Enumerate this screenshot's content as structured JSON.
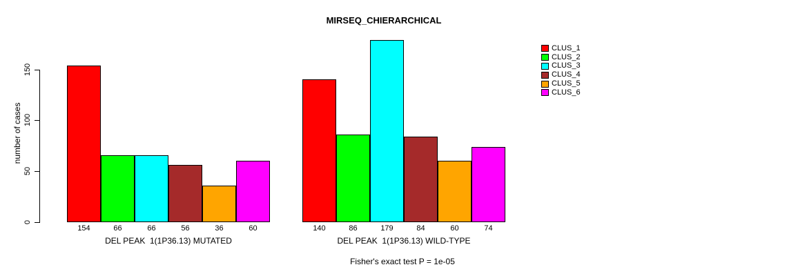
{
  "title": "MIRSEQ_CHIERARCHICAL",
  "footer": "Fisher's exact test P = 1e-05",
  "chart_data": {
    "type": "bar",
    "title": "MIRSEQ_CHIERARCHICAL",
    "xlabel": "",
    "ylabel": "number of cases",
    "ylim": [
      0,
      179
    ],
    "yticks": [
      0,
      50,
      100,
      150
    ],
    "grid": false,
    "legend_position": "top-right",
    "bar_border_color": "#000000",
    "legend": [
      {
        "label": "CLUS_1",
        "color": "#FF0000"
      },
      {
        "label": "CLUS_2",
        "color": "#00FF00"
      },
      {
        "label": "CLUS_3",
        "color": "#00FFFF"
      },
      {
        "label": "CLUS_4",
        "color": "#A52A2A"
      },
      {
        "label": "CLUS_5",
        "color": "#FFA500"
      },
      {
        "label": "CLUS_6",
        "color": "#FF00FF"
      }
    ],
    "groups": [
      {
        "label": "DEL PEAK  1(1P36.13) MUTATED",
        "values": [
          154,
          66,
          66,
          56,
          36,
          60
        ]
      },
      {
        "label": "DEL PEAK  1(1P36.13) WILD-TYPE",
        "values": [
          140,
          86,
          179,
          84,
          60,
          74
        ]
      }
    ],
    "annotation": "Fisher's exact test P = 1e-05"
  }
}
